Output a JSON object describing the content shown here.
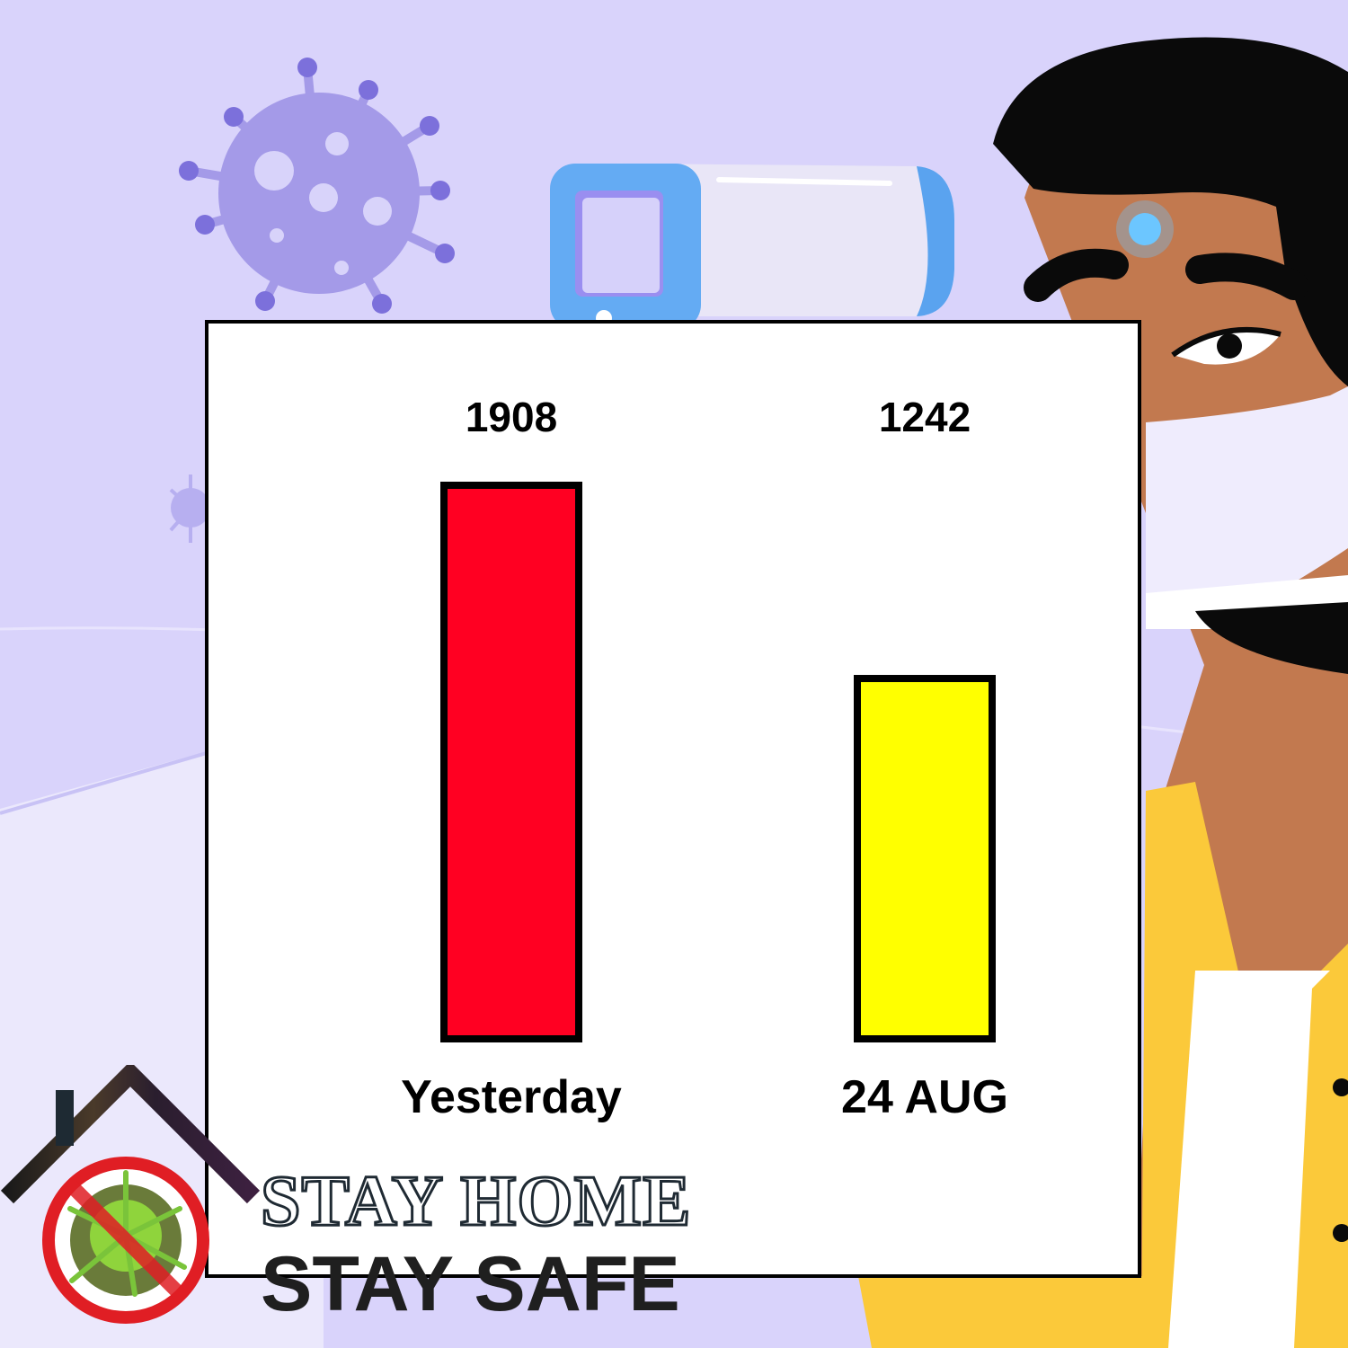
{
  "chart_data": {
    "type": "bar",
    "categories": [
      "Yesterday",
      "24 AUG"
    ],
    "values": [
      1908,
      1242
    ],
    "colors": [
      "#ff0022",
      "#ffff00"
    ],
    "title": "",
    "xlabel": "",
    "ylabel": "",
    "grid": false,
    "legend": false
  },
  "banner": {
    "line1": "STAY HOME",
    "line2": "STAY SAFE"
  },
  "illustration": {
    "icons": [
      "virus-icon",
      "thermometer-icon",
      "person-with-mask",
      "house-icon",
      "no-virus-icon"
    ]
  }
}
